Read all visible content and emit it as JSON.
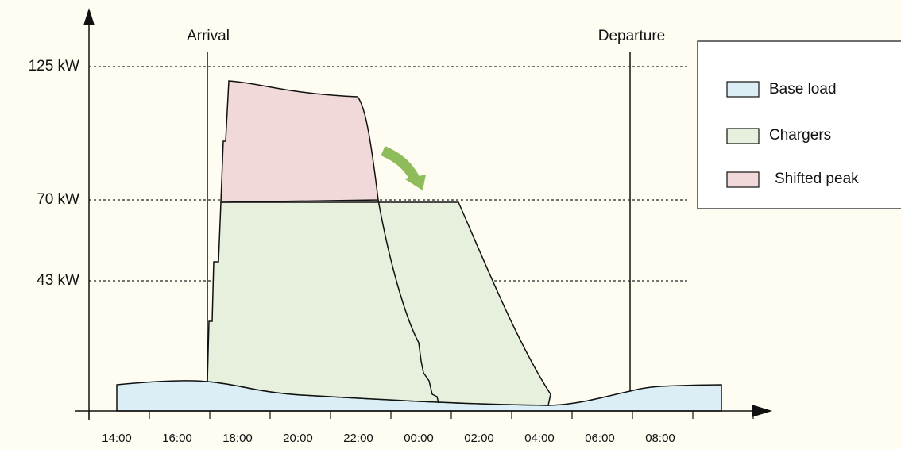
{
  "y_axis": {
    "labels": [
      "125 kW",
      "70 kW",
      "43 kW"
    ]
  },
  "x_axis": {
    "labels": [
      "14:00",
      "16:00",
      "18:00",
      "20:00",
      "22:00",
      "00:00",
      "02:00",
      "04:00",
      "06:00",
      "08:00"
    ]
  },
  "annotations": {
    "arrival": "Arrival",
    "departure": "Departure"
  },
  "legend": {
    "items": [
      "Base load",
      "Chargers",
      "Shifted peak"
    ]
  }
}
